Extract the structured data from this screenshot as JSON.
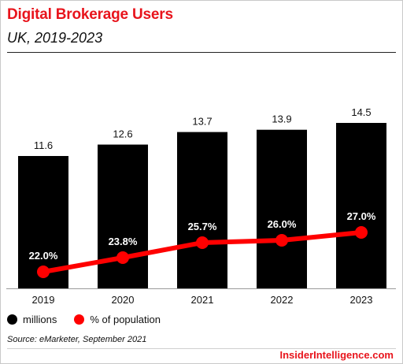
{
  "header": {
    "title": "Digital Brokerage Users",
    "subtitle": "UK, 2019-2023"
  },
  "chart_data": {
    "type": "bar",
    "categories": [
      "2019",
      "2020",
      "2021",
      "2022",
      "2023"
    ],
    "series": [
      {
        "name": "millions",
        "type": "bar",
        "values": [
          11.6,
          12.6,
          13.7,
          13.9,
          14.5
        ],
        "labels": [
          "11.6",
          "12.6",
          "13.7",
          "13.9",
          "14.5"
        ],
        "color": "#000000"
      },
      {
        "name": "% of population",
        "type": "line",
        "values": [
          22.0,
          23.8,
          25.7,
          26.0,
          27.0
        ],
        "labels": [
          "22.0%",
          "23.8%",
          "25.7%",
          "26.0%",
          "27.0%"
        ],
        "color": "#ff0000"
      }
    ],
    "legend_position": "bottom-left",
    "grid": false
  },
  "legend": {
    "items": [
      {
        "label": "millions",
        "color": "#000000"
      },
      {
        "label": "% of population",
        "color": "#ff0000"
      }
    ]
  },
  "footer": {
    "source": "Source: eMarketer, September 2021",
    "brand": "InsiderIntelligence.com"
  },
  "colors": {
    "accent": "#e8141c"
  }
}
